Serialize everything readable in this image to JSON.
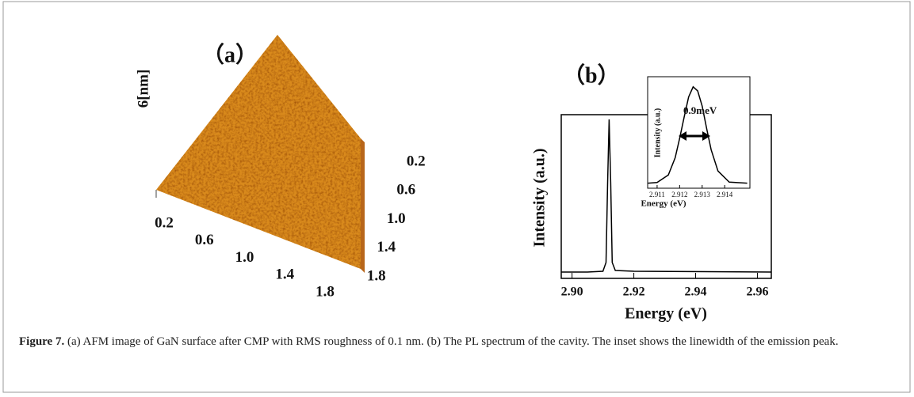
{
  "chart_data": [
    {
      "type": "surface",
      "title": "（a）",
      "zlabel": "6[nm]",
      "xlim": [
        0,
        2
      ],
      "ylim": [
        0,
        2
      ],
      "xticks": [
        0.2,
        0.6,
        {
          "value": 1,
          "label": "1.0"
        },
        1.4,
        1.8
      ],
      "yticks": [
        0.2,
        0.6,
        {
          "value": 1,
          "label": "1.0"
        },
        1.4,
        1.8
      ],
      "color": "#d98a1c"
    },
    {
      "type": "line",
      "title": "（b）",
      "xlabel": "Energy (eV)",
      "ylabel": "Intensity (a.u.)",
      "xlim": [
        2.8965,
        2.9645
      ],
      "ylim": [
        0,
        1.03
      ],
      "xticks": [
        {
          "value": 2.9,
          "label": "2.90"
        },
        {
          "value": 2.92,
          "label": "2.92"
        },
        {
          "value": 2.94,
          "label": "2.94"
        },
        {
          "value": 2.96,
          "label": "2.96"
        }
      ],
      "series": [
        {
          "color": "#000000",
          "x": [
            2.8965,
            2.905,
            2.91,
            2.911,
            2.9115,
            2.912,
            2.9125,
            2.913,
            2.914,
            2.92,
            2.9645
          ],
          "values": [
            0.04,
            0.04,
            0.045,
            0.1,
            0.6,
            1.0,
            0.6,
            0.1,
            0.05,
            0.045,
            0.04
          ]
        }
      ]
    },
    {
      "type": "line",
      "xlabel": "Energy (eV)",
      "ylabel": "Intensity (a.u.)",
      "annotation": "0.9meV",
      "xlim": [
        2.91058,
        2.91512
      ],
      "ylim": [
        0,
        1.1
      ],
      "xticks": [
        2.911,
        2.912,
        2.913,
        2.914
      ],
      "series": [
        {
          "color": "#000000",
          "x": [
            2.9106,
            2.911,
            2.9115,
            2.9118,
            2.912,
            2.9122,
            2.9124,
            2.9126,
            2.9128,
            2.913,
            2.9132,
            2.9134,
            2.9137,
            2.9142,
            2.915
          ],
          "values": [
            0.05,
            0.056,
            0.13,
            0.3,
            0.49,
            0.7,
            0.9,
            1.0,
            0.96,
            0.81,
            0.59,
            0.38,
            0.17,
            0.06,
            0.05
          ]
        }
      ]
    }
  ],
  "caption": {
    "label": "Figure 7.",
    "text": "(a) AFM image of GaN surface after CMP with RMS roughness of 0.1 nm. (b) The PL spectrum of the cavity. The inset shows the linewidth of the emission peak."
  }
}
